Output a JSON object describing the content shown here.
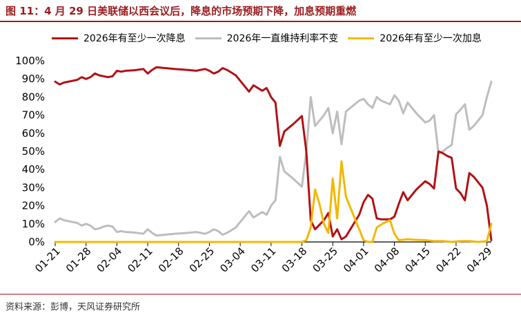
{
  "title": "图 11：4 月 29 日美联储以西会议后，降息的市场预期下降，加息预期重燃",
  "source": "资料来源：彭博，天风证券研究所",
  "colors": {
    "title": "#9b1c1f"
  },
  "chart_data": {
    "type": "line",
    "title": "",
    "xlabel": "",
    "ylabel": "",
    "ylim": [
      0,
      100
    ],
    "yticks": [
      "0%",
      "10%",
      "20%",
      "30%",
      "40%",
      "50%",
      "60%",
      "70%",
      "80%",
      "90%",
      "100%"
    ],
    "xticks": [
      "01-21",
      "01-28",
      "02-04",
      "02-11",
      "02-18",
      "02-25",
      "03-04",
      "03-11",
      "03-18",
      "03-25",
      "04-01",
      "04-08",
      "04-15",
      "04-22",
      "04-29"
    ],
    "x_range": [
      "01-21",
      "04-29"
    ],
    "legend_position": "top",
    "series": [
      {
        "name": "2026年有至少一次降息",
        "color": "#b11114",
        "points": [
          [
            "01-21",
            88.5
          ],
          [
            "01-22",
            87
          ],
          [
            "01-23",
            88
          ],
          [
            "01-24",
            88.5
          ],
          [
            "01-25",
            89
          ],
          [
            "01-26",
            89.5
          ],
          [
            "01-27",
            91
          ],
          [
            "01-28",
            90
          ],
          [
            "01-29",
            91
          ],
          [
            "01-30",
            93
          ],
          [
            "01-31",
            92
          ],
          [
            "02-01",
            91.5
          ],
          [
            "02-02",
            91
          ],
          [
            "02-03",
            91.5
          ],
          [
            "02-04",
            94.5
          ],
          [
            "02-05",
            94
          ],
          [
            "02-06",
            94.5
          ],
          [
            "02-08",
            94.8
          ],
          [
            "02-10",
            95.5
          ],
          [
            "02-11",
            93
          ],
          [
            "02-12",
            95
          ],
          [
            "02-13",
            96.5
          ],
          [
            "02-15",
            96
          ],
          [
            "02-17",
            95.5
          ],
          [
            "02-20",
            95
          ],
          [
            "02-22",
            94.5
          ],
          [
            "02-24",
            95.5
          ],
          [
            "02-25",
            94.5
          ],
          [
            "02-26",
            93
          ],
          [
            "02-27",
            94
          ],
          [
            "02-28",
            96
          ],
          [
            "03-01",
            95
          ],
          [
            "03-02",
            93.5
          ],
          [
            "03-03",
            92
          ],
          [
            "03-04",
            89
          ],
          [
            "03-05",
            86
          ],
          [
            "03-06",
            83
          ],
          [
            "03-07",
            86.5
          ],
          [
            "03-08",
            85
          ],
          [
            "03-09",
            83.5
          ],
          [
            "03-10",
            85
          ],
          [
            "03-11",
            80
          ],
          [
            "03-12",
            77
          ],
          [
            "03-13",
            53
          ],
          [
            "03-14",
            61
          ],
          [
            "03-16",
            65
          ],
          [
            "03-18",
            69.5
          ],
          [
            "03-19",
            50
          ],
          [
            "03-20",
            12
          ],
          [
            "03-21",
            7
          ],
          [
            "03-23",
            12
          ],
          [
            "03-24",
            16
          ],
          [
            "03-25",
            3
          ],
          [
            "03-26",
            7
          ],
          [
            "03-27",
            1.5
          ],
          [
            "03-28",
            3
          ],
          [
            "03-29",
            7
          ],
          [
            "03-31",
            15
          ],
          [
            "04-01",
            22
          ],
          [
            "04-02",
            26
          ],
          [
            "04-03",
            24
          ],
          [
            "04-04",
            13
          ],
          [
            "04-05",
            12.5
          ],
          [
            "04-06",
            12.5
          ],
          [
            "04-07",
            12.5
          ],
          [
            "04-08",
            14
          ],
          [
            "04-09",
            21
          ],
          [
            "04-10",
            27.5
          ],
          [
            "04-11",
            23
          ],
          [
            "04-13",
            29
          ],
          [
            "04-15",
            33.5
          ],
          [
            "04-16",
            32
          ],
          [
            "04-17",
            29.5
          ],
          [
            "04-18",
            50
          ],
          [
            "04-19",
            49
          ],
          [
            "04-20",
            47.5
          ],
          [
            "04-21",
            46.5
          ],
          [
            "04-22",
            29.5
          ],
          [
            "04-23",
            27
          ],
          [
            "04-24",
            23
          ],
          [
            "04-25",
            38
          ],
          [
            "04-26",
            36
          ],
          [
            "04-28",
            30
          ],
          [
            "04-29",
            20
          ],
          [
            "04-30",
            1
          ]
        ]
      },
      {
        "name": "2026年一直维持利率不变",
        "color": "#bdbdbd",
        "points": [
          [
            "01-21",
            11
          ],
          [
            "01-22",
            13
          ],
          [
            "01-23",
            12
          ],
          [
            "01-24",
            11.5
          ],
          [
            "01-25",
            11
          ],
          [
            "01-26",
            10.5
          ],
          [
            "01-27",
            9
          ],
          [
            "01-28",
            10
          ],
          [
            "01-29",
            9
          ],
          [
            "01-30",
            7
          ],
          [
            "01-31",
            7.5
          ],
          [
            "02-01",
            8.5
          ],
          [
            "02-02",
            9
          ],
          [
            "02-03",
            8.5
          ],
          [
            "02-04",
            5.5
          ],
          [
            "02-05",
            6
          ],
          [
            "02-06",
            5.5
          ],
          [
            "02-08",
            5.2
          ],
          [
            "02-10",
            4.5
          ],
          [
            "02-11",
            7
          ],
          [
            "02-12",
            5
          ],
          [
            "02-13",
            3.5
          ],
          [
            "02-15",
            4
          ],
          [
            "02-17",
            4.5
          ],
          [
            "02-20",
            5
          ],
          [
            "02-22",
            5.5
          ],
          [
            "02-24",
            4.5
          ],
          [
            "02-25",
            5.5
          ],
          [
            "02-26",
            7
          ],
          [
            "02-27",
            6
          ],
          [
            "02-28",
            4
          ],
          [
            "03-01",
            5
          ],
          [
            "03-02",
            6.5
          ],
          [
            "03-03",
            8
          ],
          [
            "03-04",
            11
          ],
          [
            "03-05",
            14
          ],
          [
            "03-06",
            17
          ],
          [
            "03-07",
            13.5
          ],
          [
            "03-08",
            15
          ],
          [
            "03-09",
            16.5
          ],
          [
            "03-10",
            15
          ],
          [
            "03-11",
            20
          ],
          [
            "03-12",
            23
          ],
          [
            "03-13",
            47
          ],
          [
            "03-14",
            39
          ],
          [
            "03-16",
            35
          ],
          [
            "03-18",
            30.5
          ],
          [
            "03-19",
            50
          ],
          [
            "03-20",
            80
          ],
          [
            "03-21",
            64
          ],
          [
            "03-23",
            70
          ],
          [
            "03-24",
            74
          ],
          [
            "03-25",
            60
          ],
          [
            "03-26",
            72
          ],
          [
            "03-27",
            54
          ],
          [
            "03-28",
            72
          ],
          [
            "03-29",
            74
          ],
          [
            "03-31",
            78
          ],
          [
            "04-01",
            79
          ],
          [
            "04-02",
            76
          ],
          [
            "04-03",
            74
          ],
          [
            "04-04",
            80
          ],
          [
            "04-05",
            78
          ],
          [
            "04-06",
            77
          ],
          [
            "04-07",
            76
          ],
          [
            "04-08",
            81
          ],
          [
            "04-09",
            78
          ],
          [
            "04-10",
            71
          ],
          [
            "04-11",
            77
          ],
          [
            "04-13",
            71
          ],
          [
            "04-15",
            66
          ],
          [
            "04-16",
            67
          ],
          [
            "04-17",
            70
          ],
          [
            "04-18",
            49
          ],
          [
            "04-19",
            50
          ],
          [
            "04-20",
            52
          ],
          [
            "04-21",
            53.5
          ],
          [
            "04-22",
            70.5
          ],
          [
            "04-23",
            73
          ],
          [
            "04-24",
            76
          ],
          [
            "04-25",
            62
          ],
          [
            "04-26",
            64
          ],
          [
            "04-28",
            70
          ],
          [
            "04-29",
            80
          ],
          [
            "04-30",
            88.5
          ]
        ]
      },
      {
        "name": "2026年有至少一次加息",
        "color": "#f2b800",
        "points": [
          [
            "01-21",
            0
          ],
          [
            "02-01",
            0
          ],
          [
            "02-15",
            0
          ],
          [
            "03-01",
            0
          ],
          [
            "03-12",
            0
          ],
          [
            "03-18",
            0
          ],
          [
            "03-19",
            1
          ],
          [
            "03-20",
            8
          ],
          [
            "03-21",
            29
          ],
          [
            "03-22",
            21
          ],
          [
            "03-23",
            10
          ],
          [
            "03-24",
            5
          ],
          [
            "03-25",
            35
          ],
          [
            "03-26",
            13
          ],
          [
            "03-27",
            44.5
          ],
          [
            "03-28",
            25
          ],
          [
            "03-29",
            19
          ],
          [
            "03-31",
            7
          ],
          [
            "04-01",
            1
          ],
          [
            "04-02",
            0
          ],
          [
            "04-03",
            0
          ],
          [
            "04-04",
            8
          ],
          [
            "04-05",
            9.5
          ],
          [
            "04-06",
            11
          ],
          [
            "04-07",
            12
          ],
          [
            "04-08",
            4.5
          ],
          [
            "04-09",
            1
          ],
          [
            "04-11",
            1.5
          ],
          [
            "04-13",
            1.2
          ],
          [
            "04-15",
            1
          ],
          [
            "04-17",
            0.5
          ],
          [
            "04-19",
            0.5
          ],
          [
            "04-21",
            0
          ],
          [
            "04-23",
            0.5
          ],
          [
            "04-25",
            0.5
          ],
          [
            "04-27",
            0
          ],
          [
            "04-29",
            0.5
          ],
          [
            "04-30",
            10
          ]
        ]
      }
    ]
  }
}
